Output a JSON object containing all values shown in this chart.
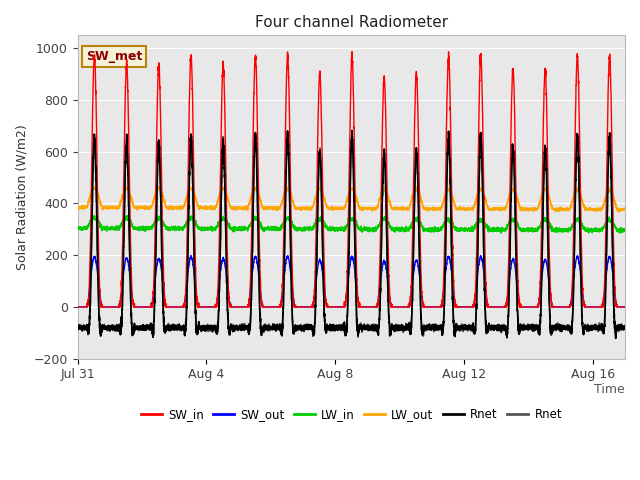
{
  "title": "Four channel Radiometer",
  "ylabel": "Solar Radiation (W/m2)",
  "xlabel": "Time",
  "ylim": [
    -200,
    1050
  ],
  "xlim_start": 0,
  "xlim_end": 17.0,
  "background_color": "#e8e8e8",
  "annotation_text": "SW_met",
  "annotation_bg": "#f5f0d8",
  "annotation_border": "#b8860b",
  "x_ticks_labels": [
    "Jul 31",
    "Aug 4",
    "Aug 8",
    "Aug 12",
    "Aug 16"
  ],
  "x_ticks_days": [
    0,
    4,
    8,
    12,
    16
  ],
  "legend_entries": [
    {
      "label": "SW_in",
      "color": "#ff0000"
    },
    {
      "label": "SW_out",
      "color": "#0000ff"
    },
    {
      "label": "LW_in",
      "color": "#00cc00"
    },
    {
      "label": "LW_out",
      "color": "#ffa500"
    },
    {
      "label": "Rnet",
      "color": "#000000"
    },
    {
      "label": "Rnet",
      "color": "#555555"
    }
  ],
  "num_days": 17,
  "SW_in_peak": 970,
  "SW_out_ratio": 0.2,
  "LW_in_base": 305,
  "LW_in_amp": 40,
  "LW_out_base": 385,
  "LW_out_amp": 75,
  "Rnet_night": -90,
  "points_per_day": 288,
  "day_rise": 0.27,
  "day_set": 0.77,
  "peak_sharpness": 4.0
}
